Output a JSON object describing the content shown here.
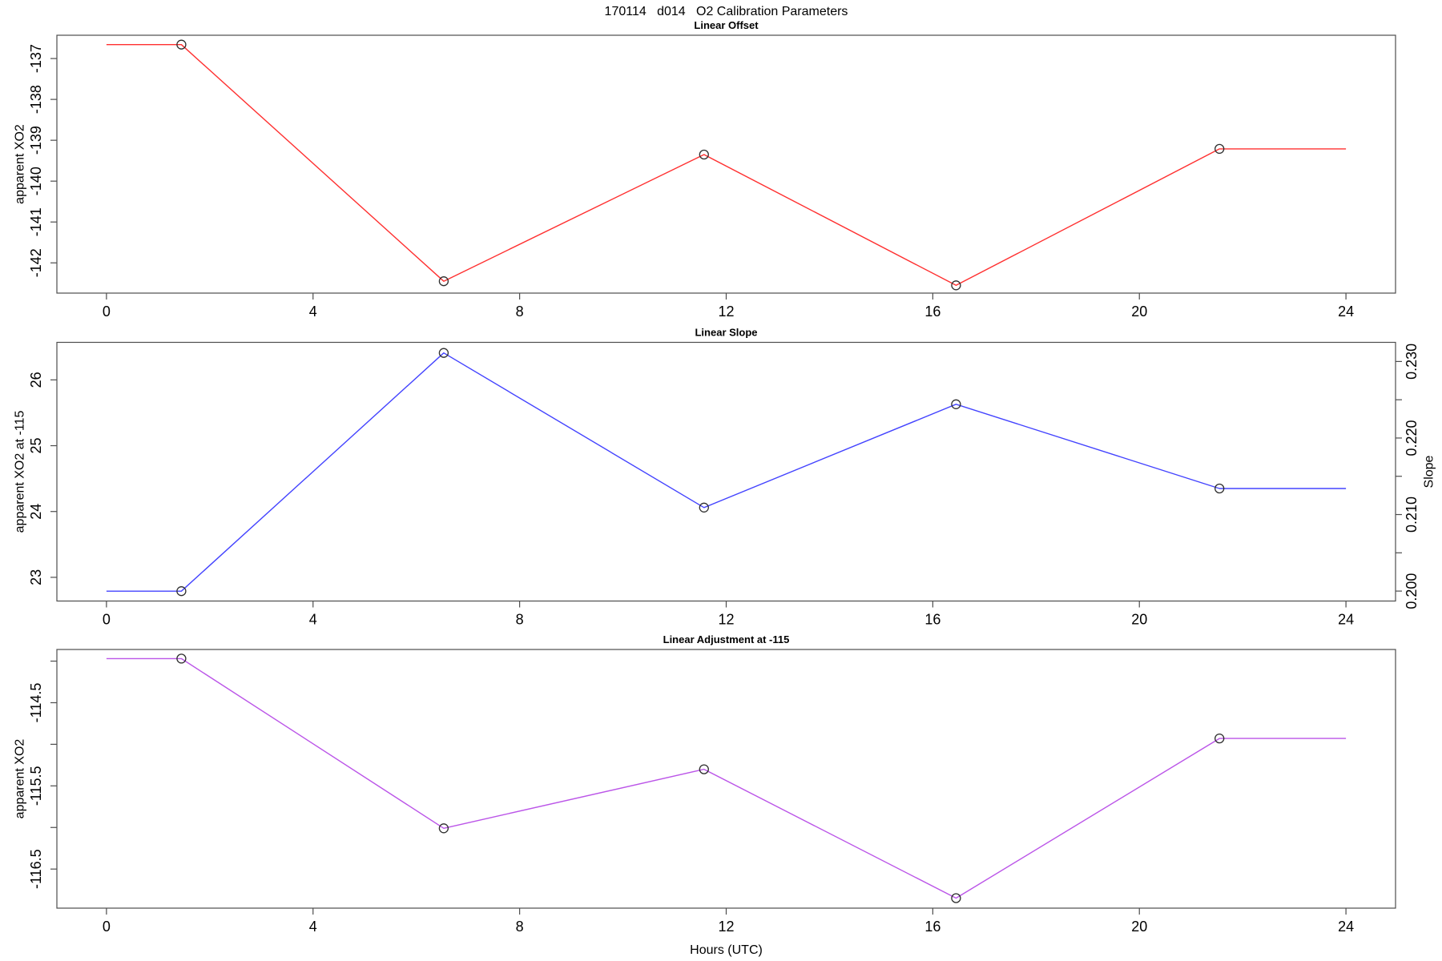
{
  "main_title": "170114   d014   O2 Calibration Parameters",
  "background_color": "#ffffff",
  "axis_color": "#4d4d4d",
  "text_color": "#000000",
  "chart_data": [
    {
      "type": "line",
      "title": "Linear Offset",
      "line_color": "#ff3030",
      "marker": "open-circle",
      "marker_color": "#2e2e2e",
      "x_hours": [
        1.45,
        6.53,
        11.57,
        16.45,
        21.55
      ],
      "values": [
        -136.66,
        -142.45,
        -139.35,
        -142.55,
        -139.21
      ],
      "flat_extension_x": [
        0,
        24
      ],
      "xlim": [
        -0.96,
        24.96
      ],
      "ylim": [
        -142.74,
        -136.43
      ],
      "xticks": [
        0,
        4,
        8,
        12,
        16,
        20,
        24
      ],
      "xtick_labels": [
        "0",
        "4",
        "8",
        "12",
        "16",
        "20",
        "24"
      ],
      "yticks": [
        -142,
        -141,
        -140,
        -139,
        -138,
        -137
      ],
      "ytick_labels": [
        "-142",
        "-141",
        "-140",
        "-139",
        "-138",
        "-137"
      ],
      "ylabel": "apparent XO2",
      "xlabel": "",
      "grid": "off",
      "legend": "none"
    },
    {
      "type": "line",
      "title": "Linear Slope",
      "line_color": "#4343ff",
      "marker": "open-circle",
      "marker_color": "#2e2e2e",
      "x_hours": [
        1.45,
        6.53,
        11.57,
        16.45,
        21.55
      ],
      "values": [
        22.79,
        26.41,
        24.06,
        25.63,
        24.35
      ],
      "flat_extension_x": [
        0,
        24
      ],
      "xlim": [
        -0.96,
        24.96
      ],
      "ylim": [
        22.64,
        26.57
      ],
      "xticks": [
        0,
        4,
        8,
        12,
        16,
        20,
        24
      ],
      "xtick_labels": [
        "0",
        "4",
        "8",
        "12",
        "16",
        "20",
        "24"
      ],
      "yticks": [
        23,
        24,
        25,
        26
      ],
      "ytick_labels": [
        "23",
        "24",
        "25",
        "26"
      ],
      "ylabel": "apparent XO2 at -115",
      "xlabel": "",
      "grid": "off",
      "legend": "none",
      "right_axis": {
        "label": "Slope",
        "ticks": [
          0.2,
          0.205,
          0.21,
          0.215,
          0.22,
          0.225,
          0.23
        ],
        "tick_labels": [
          "0.200",
          "",
          "0.210",
          "",
          "0.220",
          "",
          "0.230"
        ],
        "lim": [
          0.1987,
          0.2325
        ],
        "equivalent_values": [
          0.2,
          0.2311,
          0.211,
          0.2245,
          0.2136
        ]
      }
    },
    {
      "type": "line",
      "title": "Linear Adjustment at -115",
      "line_color": "#bb55e8",
      "marker": "open-circle",
      "marker_color": "#2e2e2e",
      "x_hours": [
        1.45,
        6.53,
        11.57,
        16.45,
        21.55
      ],
      "values": [
        -113.97,
        -116.01,
        -115.3,
        -116.85,
        -114.93
      ],
      "flat_extension_x": [
        0,
        24
      ],
      "xlim": [
        -0.96,
        24.96
      ],
      "ylim": [
        -116.97,
        -113.86
      ],
      "xticks": [
        0,
        4,
        8,
        12,
        16,
        20,
        24
      ],
      "xtick_labels": [
        "0",
        "4",
        "8",
        "12",
        "16",
        "20",
        "24"
      ],
      "yticks": [
        -116.5,
        -116,
        -115.5,
        -115,
        -114.5,
        -114
      ],
      "ytick_labels": [
        "-116.5",
        "",
        "-115.5",
        "",
        "-114.5",
        ""
      ],
      "ylabel": "apparent XO2",
      "xlabel": "Hours (UTC)",
      "grid": "off",
      "legend": "none"
    }
  ]
}
